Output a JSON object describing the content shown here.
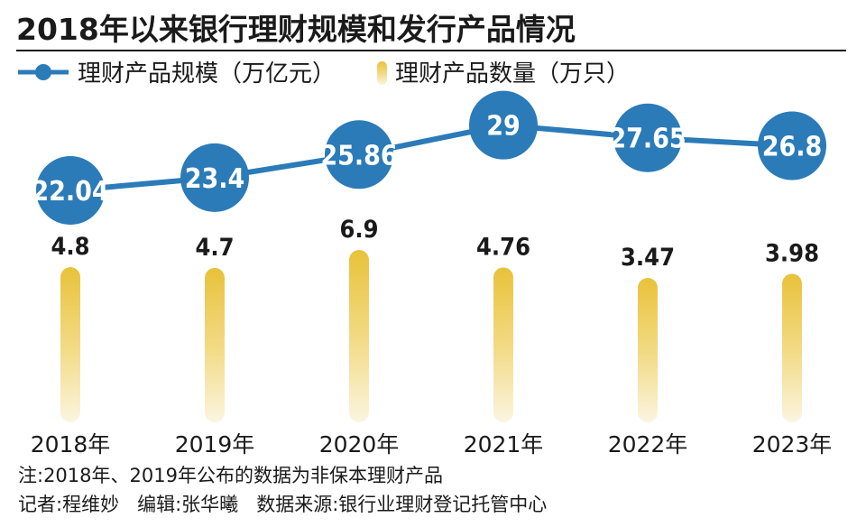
{
  "chart_data": {
    "type": "line+bar",
    "title": "2018年以来银行理财规模和发行产品情况",
    "categories": [
      "2018年",
      "2019年",
      "2020年",
      "2021年",
      "2022年",
      "2023年"
    ],
    "series": [
      {
        "name": "理财产品规模（万亿元）",
        "type": "line",
        "values": [
          22.04,
          23.4,
          25.86,
          29,
          27.65,
          26.8
        ],
        "labels": [
          "22.04",
          "23.4",
          "25.86",
          "29",
          "27.65",
          "26.8"
        ]
      },
      {
        "name": "理财产品数量（万只）",
        "type": "bar",
        "values": [
          4.8,
          4.7,
          6.9,
          4.76,
          3.47,
          3.98
        ],
        "labels": [
          "4.8",
          "4.7",
          "6.9",
          "4.76",
          "3.47",
          "3.98"
        ]
      }
    ],
    "legend": "top-left",
    "grid": false
  },
  "notes": {
    "line1": "注:2018年、2019年公布的数据为非保本理财产品",
    "line2": "记者:程维妙   编辑:张华曦   数据来源:银行业理财登记托管中心"
  },
  "colors": {
    "line": "#2b7bb8",
    "bubble": "#2b7bb8",
    "bar_top": "#e8c23a",
    "bar_bottom": "#fbf5e0",
    "rule": "#1a1a1a"
  }
}
